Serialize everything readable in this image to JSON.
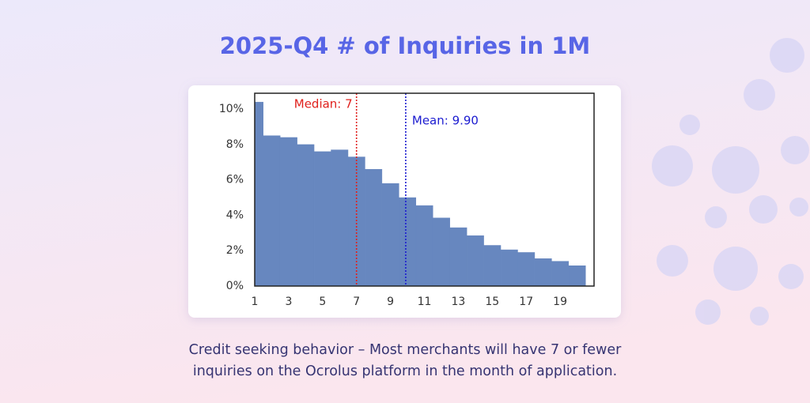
{
  "header": {
    "title": "2025-Q4 # of Inquiries in 1M"
  },
  "chart_data": {
    "type": "histogram",
    "bins": [
      1,
      1.5,
      2.5,
      3.5,
      4.5,
      5.5,
      6.5,
      7.5,
      8.5,
      9.5,
      10.5,
      11.5,
      12.5,
      13.5,
      14.5,
      15.5,
      16.5,
      17.5,
      18.5,
      19.5,
      20.5
    ],
    "counts": [
      10.4,
      8.5,
      8.4,
      8.0,
      7.6,
      7.7,
      7.3,
      6.6,
      5.8,
      5.0,
      4.55,
      3.85,
      3.3,
      2.85,
      2.3,
      2.05,
      1.9,
      1.55,
      1.4,
      1.15
    ],
    "color": "#6787bf",
    "xlim": [
      1,
      21
    ],
    "xticks": [
      1,
      3,
      5,
      7,
      9,
      11,
      13,
      15,
      17,
      19
    ],
    "ylim": [
      0,
      10.9
    ],
    "yticks": [
      {
        "value": 0,
        "label": "0%"
      },
      {
        "value": 2,
        "label": "2%"
      },
      {
        "value": 4,
        "label": "4%"
      },
      {
        "value": 6,
        "label": "6%"
      },
      {
        "value": 8,
        "label": "8%"
      },
      {
        "value": 10,
        "label": "10%"
      }
    ],
    "markers": [
      {
        "label": "Median: 7",
        "value": 7,
        "color": "#e0201c"
      },
      {
        "label": "Mean: 9.90",
        "value": 9.9,
        "color": "#1b1bd0"
      }
    ]
  },
  "caption": [
    "Credit seeking behavior – Most merchants will have 7 or fewer",
    "inquiries on the Ocrolus platform in the month of application."
  ]
}
